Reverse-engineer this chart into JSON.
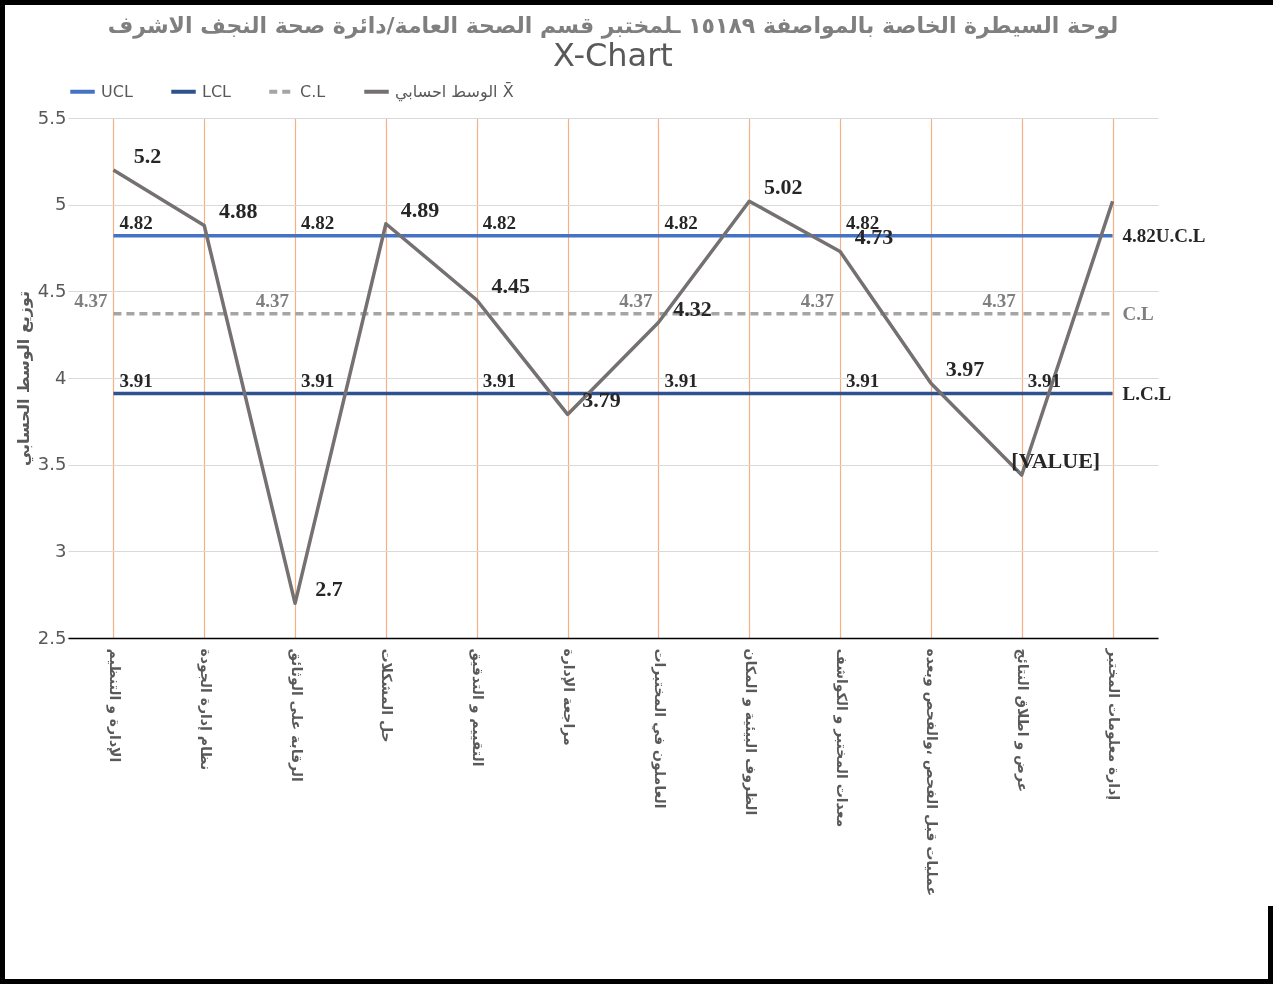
{
  "chart_data": {
    "type": "line",
    "title": "لوحة السيطرة الخاصة بالمواصفة ١٥١٨٩ ـلمختبر قسم الصحة العامة/دائرة صحة النجف الاشرف",
    "subtitle": "X-Chart",
    "ylabel": "توزيع الوسط الحسابي",
    "categories": [
      "الإدارة و التنظيم",
      "نظام إدارة الجودة",
      "الرقابة على الوثائق",
      "حل المشكلات",
      "التقييم و التدقيق",
      "مراجعة الإدارة",
      "العاملون في المختبرات",
      "الظروف البيئية و المكان",
      "معدات المختبر و الكواشف",
      "عمليات قبل الفحص ،والفحص وبعده",
      "عرض و اطلاق النتائج",
      "إدارة معلومات المختبر"
    ],
    "series": [
      {
        "name": "UCL",
        "color": "#4472c4",
        "values": [
          4.82,
          4.82,
          4.82,
          4.82,
          4.82,
          4.82,
          4.82,
          4.82,
          4.82,
          4.82,
          4.82,
          4.82
        ],
        "value_labels": [
          "4.82",
          null,
          "4.82",
          null,
          "4.82",
          null,
          "4.82",
          null,
          "4.82",
          null,
          null,
          "4.82U.C.L"
        ]
      },
      {
        "name": "LCL",
        "color": "#2f528f",
        "values": [
          3.91,
          3.91,
          3.91,
          3.91,
          3.91,
          3.91,
          3.91,
          3.91,
          3.91,
          3.91,
          3.91,
          3.91
        ],
        "value_labels": [
          "3.91",
          null,
          "3.91",
          null,
          "3.91",
          null,
          "3.91",
          null,
          "3.91",
          null,
          "3.91",
          "L.C.L"
        ]
      },
      {
        "name": "C.L",
        "color": "#a5a5a5",
        "line_style": "dashed",
        "values": [
          4.37,
          4.37,
          4.37,
          4.37,
          4.37,
          4.37,
          4.37,
          4.37,
          4.37,
          4.37,
          4.37,
          4.37
        ],
        "value_labels": [
          "4.37",
          null,
          "4.37",
          null,
          null,
          null,
          "4.37",
          null,
          "4.37",
          null,
          "4.37",
          "C.L"
        ]
      },
      {
        "name": "الوسط احسابي X̄",
        "color": "#767171",
        "values": [
          5.2,
          4.88,
          2.7,
          4.89,
          4.45,
          3.79,
          4.32,
          5.02,
          4.73,
          3.97,
          3.44,
          5.02
        ],
        "value_labels": [
          "5.2",
          "4.88",
          "2.7",
          "4.89",
          "4.45",
          "3.79",
          "4.32",
          "5.02",
          "4.73",
          "3.97",
          "[VALUE]",
          null
        ]
      }
    ],
    "ylim": [
      2.5,
      5.5
    ],
    "yticks": [
      2.5,
      3,
      3.5,
      4,
      4.5,
      5,
      5.5
    ],
    "grid": true,
    "legend": "top",
    "line_style": "solid",
    "marker": "none"
  }
}
